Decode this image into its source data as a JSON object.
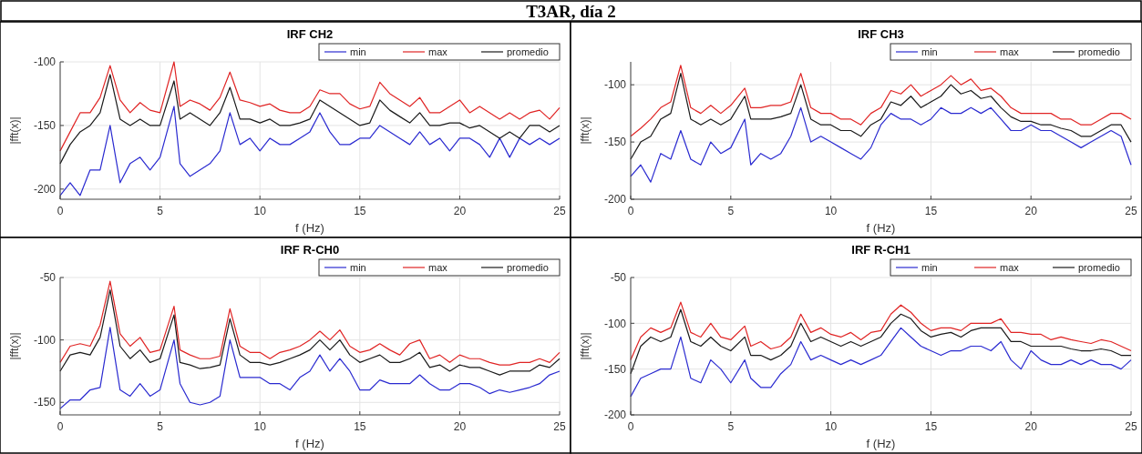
{
  "chart_data": [
    {
      "type": "other",
      "title": "T3AR, día 2"
    },
    {
      "type": "line",
      "title": "IRF CH2",
      "xlabel": "f (Hz)",
      "ylabel": "|fft(x)|",
      "xlim": [
        0,
        25
      ],
      "xticks": [
        0,
        5,
        10,
        15,
        20,
        25
      ],
      "ylim": [
        -208,
        -100
      ],
      "yticks": [
        -200,
        -150,
        -100
      ],
      "grid": true,
      "legend": "top right",
      "line_style": "solid",
      "x": [
        0,
        0.5,
        1,
        1.5,
        2,
        2.5,
        3,
        3.5,
        4,
        4.5,
        5,
        5.7,
        6,
        6.5,
        7,
        7.5,
        8,
        8.5,
        9,
        9.5,
        10,
        10.5,
        11,
        11.5,
        12,
        12.5,
        13,
        13.5,
        14,
        14.5,
        15,
        15.5,
        16,
        16.5,
        17,
        17.5,
        18,
        18.5,
        19,
        19.5,
        20,
        20.5,
        21,
        21.5,
        22,
        22.5,
        23,
        23.5,
        24,
        24.5,
        25
      ],
      "series": [
        {
          "name": "min",
          "color": "#2a2ad0",
          "values": [
            -205,
            -195,
            -205,
            -185,
            -185,
            -150,
            -195,
            -180,
            -175,
            -185,
            -175,
            -135,
            -180,
            -190,
            -185,
            -180,
            -170,
            -140,
            -165,
            -160,
            -170,
            -160,
            -165,
            -165,
            -160,
            -155,
            -140,
            -155,
            -165,
            -165,
            -160,
            -160,
            -150,
            -155,
            -160,
            -165,
            -155,
            -165,
            -160,
            -170,
            -160,
            -160,
            -165,
            -175,
            -160,
            -175,
            -160,
            -165,
            -160,
            -165,
            -160
          ]
        },
        {
          "name": "max",
          "color": "#e02424",
          "values": [
            -170,
            -155,
            -140,
            -140,
            -128,
            -103,
            -130,
            -140,
            -132,
            -138,
            -140,
            -100,
            -135,
            -130,
            -133,
            -138,
            -128,
            -108,
            -130,
            -132,
            -135,
            -133,
            -138,
            -140,
            -140,
            -135,
            -122,
            -125,
            -125,
            -133,
            -137,
            -135,
            -116,
            -125,
            -130,
            -135,
            -128,
            -140,
            -140,
            -135,
            -130,
            -140,
            -135,
            -140,
            -145,
            -140,
            -145,
            -140,
            -138,
            -145,
            -136
          ]
        },
        {
          "name": "promedio",
          "color": "#1a1a1a",
          "values": [
            -180,
            -165,
            -155,
            -150,
            -140,
            -110,
            -145,
            -150,
            -145,
            -150,
            -150,
            -115,
            -145,
            -140,
            -145,
            -150,
            -140,
            -120,
            -145,
            -145,
            -148,
            -145,
            -150,
            -150,
            -148,
            -145,
            -130,
            -135,
            -140,
            -145,
            -150,
            -148,
            -130,
            -138,
            -143,
            -148,
            -140,
            -150,
            -150,
            -148,
            -148,
            -152,
            -150,
            -155,
            -160,
            -155,
            -160,
            -150,
            -150,
            -155,
            -150
          ]
        }
      ]
    },
    {
      "type": "line",
      "title": "IRF CH3",
      "xlabel": "f (Hz)",
      "ylabel": "|fft(x)|",
      "xlim": [
        0,
        25
      ],
      "xticks": [
        0,
        5,
        10,
        15,
        20,
        25
      ],
      "ylim": [
        -200,
        -80
      ],
      "yticks": [
        -200,
        -150,
        -100
      ],
      "grid": true,
      "legend": "top right",
      "line_style": "solid",
      "x": [
        0,
        0.5,
        1,
        1.5,
        2,
        2.5,
        3,
        3.5,
        4,
        4.5,
        5,
        5.7,
        6,
        6.5,
        7,
        7.5,
        8,
        8.5,
        9,
        9.5,
        10,
        10.5,
        11,
        11.5,
        12,
        12.5,
        13,
        13.5,
        14,
        14.5,
        15,
        15.5,
        16,
        16.5,
        17,
        17.5,
        18,
        18.5,
        19,
        19.5,
        20,
        20.5,
        21,
        21.5,
        22,
        22.5,
        23,
        23.5,
        24,
        24.5,
        25
      ],
      "series": [
        {
          "name": "min",
          "color": "#2a2ad0",
          "values": [
            -180,
            -170,
            -185,
            -160,
            -165,
            -140,
            -165,
            -170,
            -150,
            -160,
            -155,
            -130,
            -170,
            -160,
            -165,
            -160,
            -145,
            -120,
            -150,
            -145,
            -150,
            -155,
            -160,
            -165,
            -155,
            -135,
            -125,
            -130,
            -130,
            -135,
            -130,
            -120,
            -125,
            -125,
            -120,
            -125,
            -120,
            -130,
            -140,
            -140,
            -135,
            -140,
            -140,
            -145,
            -150,
            -155,
            -150,
            -145,
            -140,
            -145,
            -170
          ]
        },
        {
          "name": "max",
          "color": "#e02424",
          "values": [
            -145,
            -138,
            -130,
            -120,
            -115,
            -83,
            -120,
            -125,
            -118,
            -125,
            -118,
            -103,
            -120,
            -120,
            -118,
            -118,
            -115,
            -90,
            -120,
            -125,
            -125,
            -130,
            -130,
            -135,
            -125,
            -120,
            -105,
            -108,
            -100,
            -110,
            -105,
            -100,
            -92,
            -100,
            -95,
            -105,
            -103,
            -110,
            -120,
            -125,
            -125,
            -125,
            -125,
            -130,
            -130,
            -135,
            -135,
            -130,
            -125,
            -125,
            -130
          ]
        },
        {
          "name": "promedio",
          "color": "#1a1a1a",
          "values": [
            -165,
            -150,
            -145,
            -130,
            -125,
            -90,
            -130,
            -135,
            -130,
            -135,
            -130,
            -110,
            -130,
            -130,
            -130,
            -128,
            -125,
            -100,
            -130,
            -135,
            -135,
            -140,
            -140,
            -145,
            -135,
            -130,
            -115,
            -118,
            -110,
            -120,
            -115,
            -110,
            -100,
            -108,
            -105,
            -112,
            -110,
            -120,
            -128,
            -132,
            -132,
            -135,
            -135,
            -138,
            -140,
            -145,
            -145,
            -140,
            -135,
            -135,
            -150
          ]
        }
      ]
    },
    {
      "type": "line",
      "title": "IRF R-CH0",
      "xlabel": "f (Hz)",
      "ylabel": "|fft(x)|",
      "xlim": [
        0,
        25
      ],
      "xticks": [
        0,
        5,
        10,
        15,
        20,
        25
      ],
      "ylim": [
        -160,
        -50
      ],
      "yticks": [
        -150,
        -100,
        -50
      ],
      "grid": true,
      "legend": "top right",
      "line_style": "solid",
      "x": [
        0,
        0.5,
        1,
        1.5,
        2,
        2.5,
        3,
        3.5,
        4,
        4.5,
        5,
        5.7,
        6,
        6.5,
        7,
        7.5,
        8,
        8.5,
        9,
        9.5,
        10,
        10.5,
        11,
        11.5,
        12,
        12.5,
        13,
        13.5,
        14,
        14.5,
        15,
        15.5,
        16,
        16.5,
        17,
        17.5,
        18,
        18.5,
        19,
        19.5,
        20,
        20.5,
        21,
        21.5,
        22,
        22.5,
        23,
        23.5,
        24,
        24.5,
        25
      ],
      "series": [
        {
          "name": "min",
          "color": "#2a2ad0",
          "values": [
            -155,
            -148,
            -148,
            -140,
            -138,
            -90,
            -140,
            -145,
            -135,
            -145,
            -140,
            -100,
            -135,
            -150,
            -152,
            -150,
            -145,
            -100,
            -130,
            -130,
            -130,
            -135,
            -135,
            -140,
            -130,
            -125,
            -112,
            -125,
            -115,
            -125,
            -140,
            -140,
            -132,
            -135,
            -135,
            -135,
            -128,
            -135,
            -140,
            -140,
            -135,
            -135,
            -138,
            -143,
            -140,
            -142,
            -140,
            -138,
            -135,
            -128,
            -125
          ]
        },
        {
          "name": "max",
          "color": "#e02424",
          "values": [
            -118,
            -105,
            -103,
            -105,
            -88,
            -53,
            -95,
            -105,
            -98,
            -110,
            -108,
            -73,
            -108,
            -112,
            -115,
            -115,
            -113,
            -75,
            -105,
            -110,
            -110,
            -115,
            -110,
            -108,
            -105,
            -100,
            -93,
            -100,
            -92,
            -105,
            -110,
            -108,
            -103,
            -108,
            -112,
            -103,
            -100,
            -115,
            -112,
            -118,
            -112,
            -115,
            -115,
            -118,
            -120,
            -120,
            -118,
            -118,
            -115,
            -118,
            -110
          ]
        },
        {
          "name": "promedio",
          "color": "#1a1a1a",
          "values": [
            -125,
            -112,
            -110,
            -112,
            -98,
            -60,
            -105,
            -115,
            -108,
            -118,
            -115,
            -80,
            -118,
            -120,
            -123,
            -122,
            -120,
            -83,
            -112,
            -118,
            -118,
            -120,
            -118,
            -115,
            -112,
            -108,
            -100,
            -108,
            -100,
            -112,
            -118,
            -115,
            -112,
            -118,
            -118,
            -115,
            -110,
            -122,
            -120,
            -125,
            -120,
            -122,
            -122,
            -125,
            -128,
            -125,
            -125,
            -125,
            -120,
            -122,
            -115
          ]
        }
      ]
    },
    {
      "type": "line",
      "title": "IRF R-CH1",
      "xlabel": "f (Hz)",
      "ylabel": "|fft(x)|",
      "xlim": [
        0,
        25
      ],
      "xticks": [
        0,
        5,
        10,
        15,
        20,
        25
      ],
      "ylim": [
        -200,
        -50
      ],
      "yticks": [
        -200,
        -150,
        -100,
        -50
      ],
      "grid": true,
      "legend": "top right",
      "line_style": "solid",
      "x": [
        0,
        0.5,
        1,
        1.5,
        2,
        2.5,
        3,
        3.5,
        4,
        4.5,
        5,
        5.7,
        6,
        6.5,
        7,
        7.5,
        8,
        8.5,
        9,
        9.5,
        10,
        10.5,
        11,
        11.5,
        12,
        12.5,
        13,
        13.5,
        14,
        14.5,
        15,
        15.5,
        16,
        16.5,
        17,
        17.5,
        18,
        18.5,
        19,
        19.5,
        20,
        20.5,
        21,
        21.5,
        22,
        22.5,
        23,
        23.5,
        24,
        24.5,
        25
      ],
      "series": [
        {
          "name": "min",
          "color": "#2a2ad0",
          "values": [
            -180,
            -160,
            -155,
            -150,
            -150,
            -115,
            -160,
            -165,
            -140,
            -150,
            -165,
            -140,
            -160,
            -170,
            -170,
            -155,
            -145,
            -120,
            -140,
            -135,
            -140,
            -145,
            -140,
            -145,
            -140,
            -135,
            -120,
            -105,
            -115,
            -125,
            -130,
            -135,
            -130,
            -130,
            -125,
            -125,
            -130,
            -120,
            -140,
            -150,
            -130,
            -140,
            -145,
            -145,
            -140,
            -145,
            -140,
            -145,
            -145,
            -150,
            -140
          ]
        },
        {
          "name": "max",
          "color": "#e02424",
          "values": [
            -140,
            -115,
            -105,
            -110,
            -105,
            -77,
            -110,
            -115,
            -100,
            -115,
            -118,
            -103,
            -125,
            -120,
            -128,
            -125,
            -115,
            -90,
            -110,
            -105,
            -112,
            -115,
            -110,
            -118,
            -110,
            -108,
            -90,
            -80,
            -88,
            -100,
            -108,
            -105,
            -105,
            -108,
            -100,
            -100,
            -100,
            -95,
            -110,
            -110,
            -112,
            -112,
            -118,
            -115,
            -118,
            -120,
            -122,
            -118,
            -120,
            -125,
            -130
          ]
        },
        {
          "name": "promedio",
          "color": "#1a1a1a",
          "values": [
            -155,
            -125,
            -115,
            -120,
            -115,
            -85,
            -120,
            -125,
            -115,
            -125,
            -130,
            -115,
            -135,
            -135,
            -140,
            -135,
            -125,
            -100,
            -120,
            -115,
            -120,
            -125,
            -120,
            -125,
            -120,
            -115,
            -100,
            -90,
            -95,
            -108,
            -115,
            -112,
            -110,
            -115,
            -108,
            -105,
            -105,
            -105,
            -120,
            -120,
            -125,
            -125,
            -125,
            -125,
            -128,
            -130,
            -130,
            -128,
            -130,
            -135,
            -135
          ]
        }
      ]
    }
  ]
}
